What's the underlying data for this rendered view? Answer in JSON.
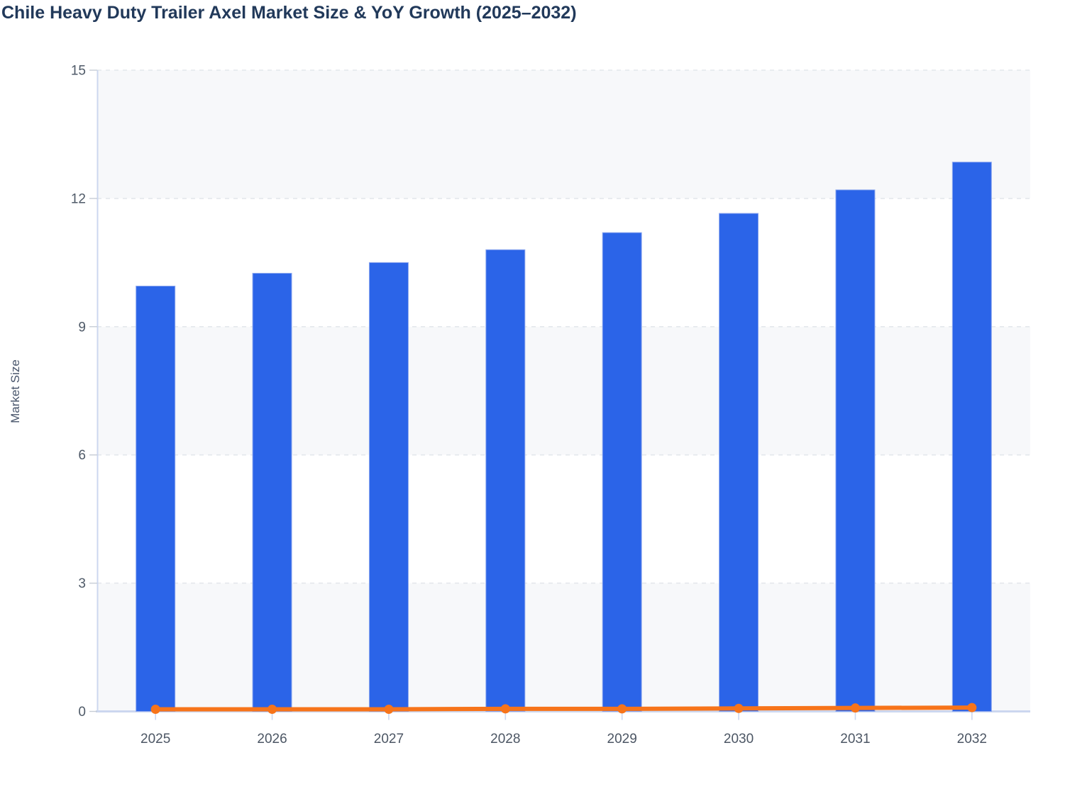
{
  "page": {
    "title": "Chile Heavy Duty Trailer Axel Market Size & YoY Growth (2025–2032)"
  },
  "y_axis_title": "Market Size",
  "colors": {
    "bar": "#2b64e8",
    "bar_border": "#8fa9ef",
    "line": "#f7741a",
    "axis_line": "#ccd7ef",
    "grid_line": "#e4e7ec",
    "band_fill": "#f7f8fa",
    "y_tick_mark": "#c6ccd6",
    "tick_label": "#4f5a68",
    "x_tick_label": "#4c5664",
    "title_text": "#21395a",
    "axis_title_text": "#47546a",
    "background": "#ffffff"
  },
  "chart_data": {
    "type": "bar",
    "title": "Chile Heavy Duty Trailer Axel Market Size & YoY Growth (2025–2032)",
    "categories": [
      "2025",
      "2026",
      "2027",
      "2028",
      "2029",
      "2030",
      "2031",
      "2032"
    ],
    "series": [
      {
        "name": "Market Size",
        "type": "bar",
        "color": "#2b64e8",
        "values": [
          9.95,
          10.25,
          10.5,
          10.8,
          11.2,
          11.65,
          12.2,
          12.85
        ]
      },
      {
        "name": "YoY Growth",
        "type": "line",
        "color": "#f7741a",
        "values": [
          0.05,
          0.05,
          0.05,
          0.06,
          0.06,
          0.07,
          0.08,
          0.09
        ]
      }
    ],
    "xlabel": "",
    "ylabel": "Market Size",
    "ylim": [
      0,
      15
    ],
    "yticks": [
      0,
      3,
      6,
      9,
      12,
      15
    ],
    "grid": "horizontal-dashed",
    "background_bands": "alternating-gray-white",
    "legend": "none"
  }
}
